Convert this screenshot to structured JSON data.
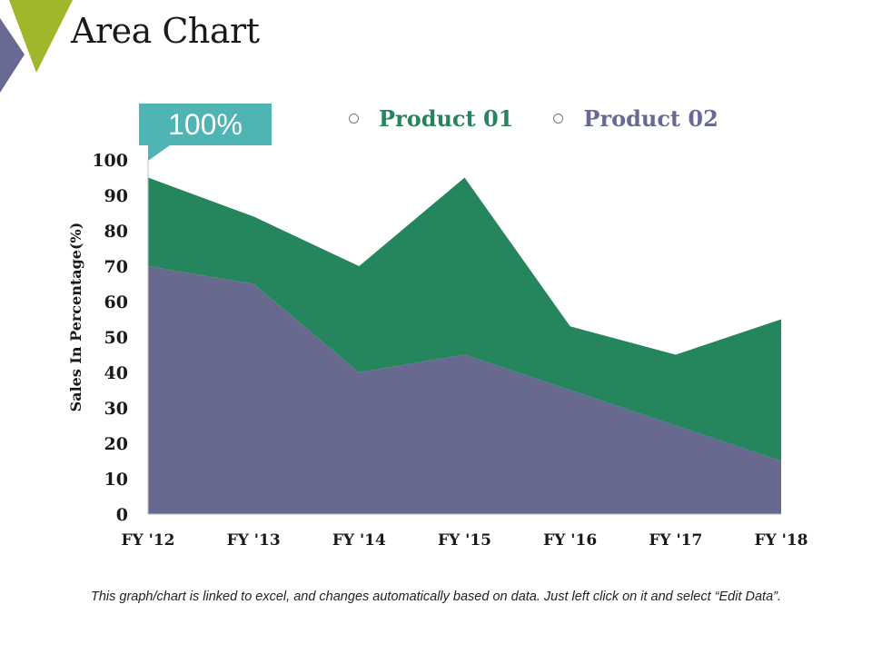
{
  "slide": {
    "title": "Area Chart",
    "callout": "100%",
    "footer": "This graph/chart is linked to excel, and changes automatically based on data. Just left click on it and select “Edit Data”."
  },
  "colors": {
    "product01": "#25855c",
    "product02": "#67698f",
    "callout": "#4fb4b4",
    "accent_green": "#9fb62b",
    "accent_slate": "#686a94"
  },
  "chart_data": {
    "type": "area",
    "stacked": true,
    "categories": [
      "FY '12",
      "FY '13",
      "FY '14",
      "FY '15",
      "FY '16",
      "FY '17",
      "FY '18"
    ],
    "series": [
      {
        "name": "Product 01",
        "values": [
          25,
          19,
          30,
          50,
          18,
          20,
          40
        ]
      },
      {
        "name": "Product 02",
        "values": [
          70,
          65,
          40,
          45,
          35,
          25,
          15
        ]
      }
    ],
    "title": "",
    "xlabel": "",
    "ylabel": "Sales In Percentage(%)",
    "ylim": [
      0,
      100
    ],
    "yticks": [
      0,
      10,
      20,
      30,
      40,
      50,
      60,
      70,
      80,
      90,
      100
    ],
    "legend": "top"
  }
}
